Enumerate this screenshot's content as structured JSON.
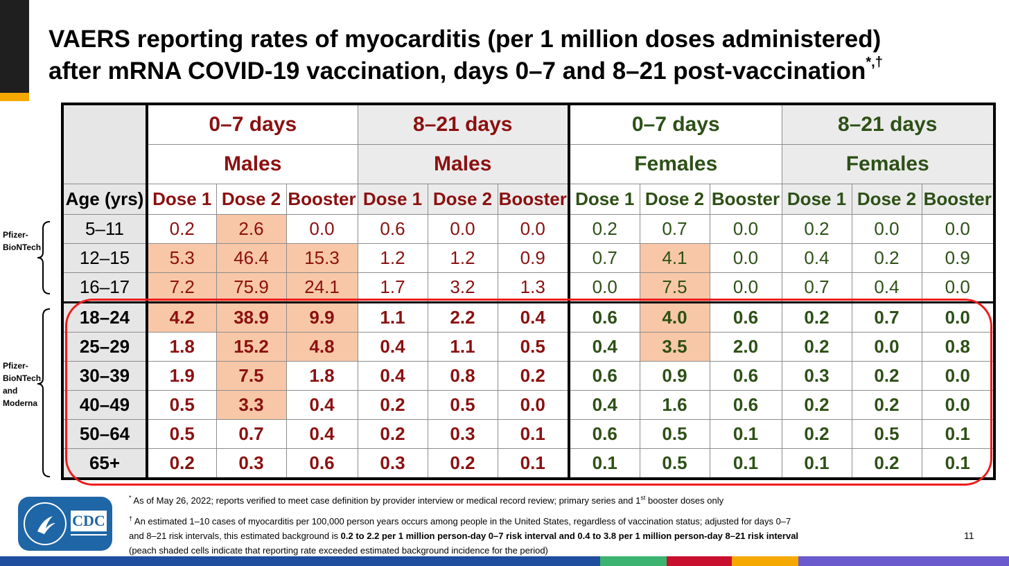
{
  "title": {
    "line1": "VAERS reporting rates of myocarditis (per 1 million doses administered)",
    "line2": "after mRNA COVID-19 vaccination, days 0–7 and 8–21 post-vaccination",
    "footnote_marks": "*,†"
  },
  "table": {
    "age_header": "Age (yrs)",
    "group_periods": [
      "0–7 days",
      "8–21 days",
      "0–7 days",
      "8–21 days"
    ],
    "group_sexes": [
      "Males",
      "Males",
      "Females",
      "Females"
    ],
    "dose_labels": [
      "Dose 1",
      "Dose 2",
      "Booster",
      "Dose 1",
      "Dose 2",
      "Booster",
      "Dose 1",
      "Dose 2",
      "Booster",
      "Dose 1",
      "Dose 2",
      "Booster"
    ],
    "rows": [
      {
        "age": "5–11",
        "values": [
          "0.2",
          "2.6",
          "0.0",
          "0.6",
          "0.0",
          "0.0",
          "0.2",
          "0.7",
          "0.0",
          "0.2",
          "0.0",
          "0.0"
        ]
      },
      {
        "age": "12–15",
        "values": [
          "5.3",
          "46.4",
          "15.3",
          "1.2",
          "1.2",
          "0.9",
          "0.7",
          "4.1",
          "0.0",
          "0.4",
          "0.2",
          "0.9"
        ]
      },
      {
        "age": "16–17",
        "values": [
          "7.2",
          "75.9",
          "24.1",
          "1.7",
          "3.2",
          "1.3",
          "0.0",
          "7.5",
          "0.0",
          "0.7",
          "0.4",
          "0.0"
        ]
      },
      {
        "age": "18–24",
        "values": [
          "4.2",
          "38.9",
          "9.9",
          "1.1",
          "2.2",
          "0.4",
          "0.6",
          "4.0",
          "0.6",
          "0.2",
          "0.7",
          "0.0"
        ]
      },
      {
        "age": "25–29",
        "values": [
          "1.8",
          "15.2",
          "4.8",
          "0.4",
          "1.1",
          "0.5",
          "0.4",
          "3.5",
          "2.0",
          "0.2",
          "0.0",
          "0.8"
        ]
      },
      {
        "age": "30–39",
        "values": [
          "1.9",
          "7.5",
          "1.8",
          "0.4",
          "0.8",
          "0.2",
          "0.6",
          "0.9",
          "0.6",
          "0.3",
          "0.2",
          "0.0"
        ]
      },
      {
        "age": "40–49",
        "values": [
          "0.5",
          "3.3",
          "0.4",
          "0.2",
          "0.5",
          "0.0",
          "0.4",
          "1.6",
          "0.6",
          "0.2",
          "0.2",
          "0.0"
        ]
      },
      {
        "age": "50–64",
        "values": [
          "0.5",
          "0.7",
          "0.4",
          "0.2",
          "0.3",
          "0.1",
          "0.6",
          "0.5",
          "0.1",
          "0.2",
          "0.5",
          "0.1"
        ]
      },
      {
        "age": "65+",
        "values": [
          "0.2",
          "0.3",
          "0.6",
          "0.3",
          "0.2",
          "0.1",
          "0.1",
          "0.5",
          "0.1",
          "0.1",
          "0.2",
          "0.1"
        ]
      }
    ]
  },
  "brace_labels": {
    "pfizer": [
      "Pfizer-",
      "BioNTech"
    ],
    "pfizer_moderna": [
      "Pfizer-",
      "BioNTech",
      "and",
      "Moderna"
    ]
  },
  "footnotes": {
    "note1_mark": "*",
    "note1_text": " As of May 26, 2022; reports verified to meet case definition by provider interview or medical record review; primary series and 1",
    "note1_sup": "st",
    "note1_tail": " booster doses only",
    "note2_mark": "†",
    "note2_line1": " An estimated 1–10 cases of myocarditis per 100,000 person years occurs among people in the United States, regardless of vaccination status; adjusted for days 0–7",
    "note2_line2_pre": "and 8–21 risk intervals, this estimated background is ",
    "note2_line2_bold": "0.2 to 2.2 per 1 million person-day 0–7 risk interval and 0.4 to 3.8 per 1 million person-day 8–21 risk interval",
    "note2_line3": "(peach shaded cells indicate that reporting rate exceeded estimated background incidence for the period)"
  },
  "logo": {
    "text": "CDC"
  },
  "page_number": "11",
  "colors": {
    "male_text": "#8b1010",
    "female_text": "#2d5016",
    "peach": "#f8c7a7",
    "highlight_box": "#ee1c1c",
    "bottom_bar": [
      "#1f4e9e",
      "#3cb371",
      "#c8102e",
      "#f5a800",
      "#6a5acd"
    ]
  }
}
